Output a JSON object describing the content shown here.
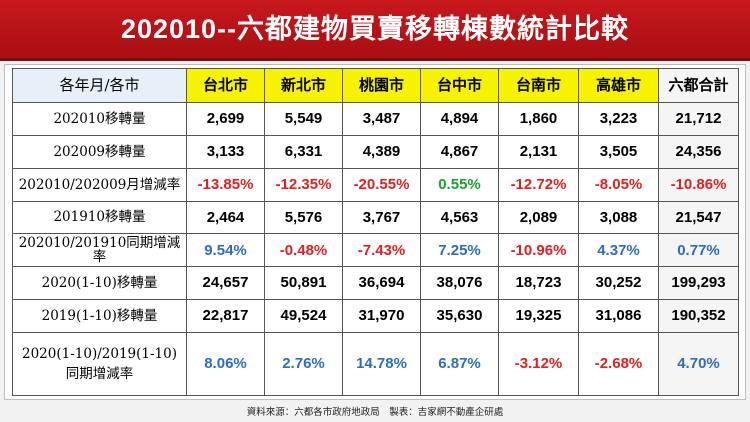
{
  "title": "202010--六都建物買賣移轉棟數統計比較",
  "table": {
    "corner": "各年月/各市",
    "columns": [
      "台北市",
      "新北市",
      "桃園市",
      "台中市",
      "台南市",
      "高雄市",
      "六都合計"
    ],
    "rows": [
      {
        "label": "202010移轉量",
        "values": [
          "2,699",
          "5,549",
          "3,487",
          "4,894",
          "1,860",
          "3,223",
          "21,712"
        ]
      },
      {
        "label": "202009移轉量",
        "values": [
          "3,133",
          "6,331",
          "4,389",
          "4,867",
          "2,131",
          "3,505",
          "24,356"
        ]
      },
      {
        "label": "202010/202009月增減率",
        "values": [
          "-13.85%",
          "-12.35%",
          "-20.55%",
          "0.55%",
          "-12.72%",
          "-8.05%",
          "-10.86%"
        ]
      },
      {
        "label": "201910移轉量",
        "values": [
          "2,464",
          "5,576",
          "3,767",
          "4,563",
          "2,089",
          "3,088",
          "21,547"
        ]
      },
      {
        "label": "202010/201910同期增減率",
        "values": [
          "9.54%",
          "-0.48%",
          "-7.43%",
          "7.25%",
          "-10.96%",
          "4.37%",
          "0.77%"
        ]
      },
      {
        "label": "2020(1-10)移轉量",
        "values": [
          "24,657",
          "50,891",
          "36,694",
          "38,076",
          "18,723",
          "30,252",
          "199,293"
        ]
      },
      {
        "label": "2019(1-10)移轉量",
        "values": [
          "22,817",
          "49,524",
          "31,970",
          "35,630",
          "19,325",
          "31,086",
          "190,352"
        ]
      },
      {
        "label_line1": "2020(1-10)/2019(1-10)",
        "label_line2": "同期增減率",
        "values": [
          "8.06%",
          "2.76%",
          "14.78%",
          "6.87%",
          "-3.12%",
          "-2.68%",
          "4.70%"
        ]
      }
    ]
  },
  "footer": "資料來源：六都各市政府地政局　製表：吉家網不動產企研處",
  "colors": {
    "negative": "#e1201f",
    "positive_green": "#18a22e",
    "positive_blue": "#2b6cc4",
    "header_yellow": "#f6f200",
    "title_red": "#c8181d"
  }
}
